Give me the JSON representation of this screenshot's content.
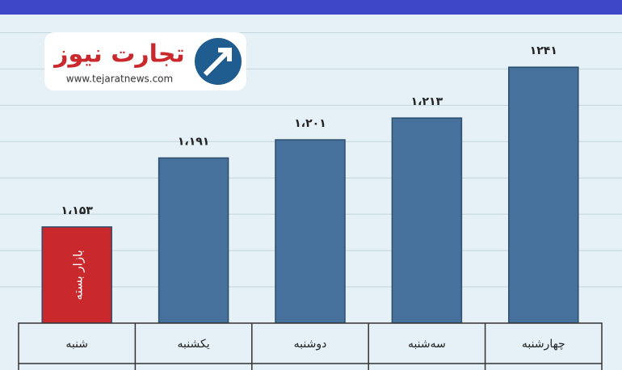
{
  "chart_data": {
    "type": "bar",
    "logo_title": "تجارت نیوز",
    "logo_url": "www.tejaratnews.com",
    "annotation": "بازار بسته",
    "categories": [
      "شنبه",
      "یکشنبه",
      "دوشنبه",
      "سه‌شنبه",
      "چهارشنبه"
    ],
    "values": [
      1153,
      1191,
      1201,
      1213,
      1241
    ],
    "value_labels": [
      "۱،۱۵۳",
      "۱،۱۹۱",
      "۱،۲۰۱",
      "۱،۲۱۳",
      "۱۲۴۱"
    ],
    "colors": [
      "#c9282d",
      "#46719c",
      "#46719c",
      "#46719c",
      "#46719c"
    ],
    "ylim": [
      1100,
      1270
    ],
    "yticks": [
      1120,
      1140,
      1160,
      1180,
      1200,
      1220,
      1240,
      1260
    ],
    "grid": true
  }
}
